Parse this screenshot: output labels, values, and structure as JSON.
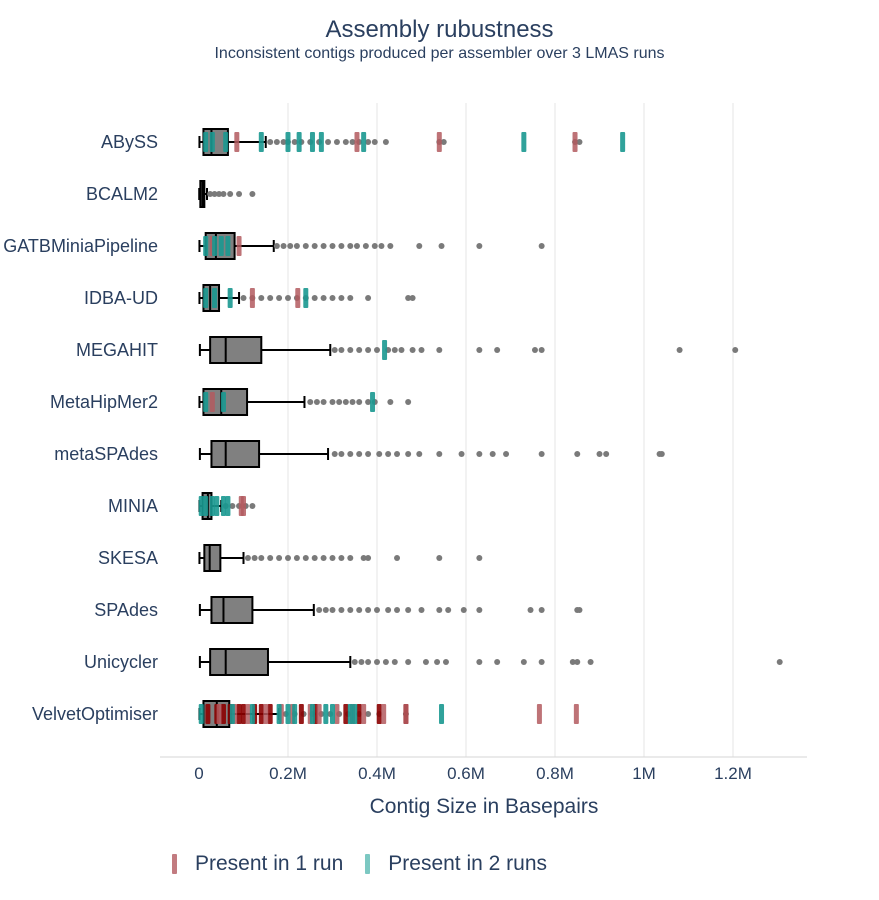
{
  "chart_data": {
    "type": "box",
    "title": "Assembly rubustness",
    "subtitle": "Inconsistent contigs produced per assembler over 3 LMAS runs",
    "xlabel": "Contig Size in Basepairs",
    "ylabel": "",
    "xlim": [
      -30000,
      1370000
    ],
    "xticks": [
      0,
      200000,
      400000,
      600000,
      800000,
      1000000,
      1200000
    ],
    "xtick_labels": [
      "0",
      "0.2M",
      "0.4M",
      "0.6M",
      "0.8M",
      "1M",
      "1.2M"
    ],
    "grid": "vertical",
    "legend_position": "bottom",
    "colors": {
      "box_fill": "#808080",
      "box_line": "#000000",
      "outlier": "#7a7a7a",
      "run1": "#b35a5f",
      "run2": "#1a9890",
      "run3": "#8b0000",
      "grid": "#e5e5e5",
      "text": "#2a3f5f"
    },
    "legend": [
      {
        "name": "Present in 1 run",
        "color": "#c27b80"
      },
      {
        "name": "Present in 2 runs",
        "color": "#7cc8c2"
      }
    ],
    "categories": [
      "ABySS",
      "BCALM2",
      "GATBMiniaPipeline",
      "IDBA-UD",
      "MEGAHIT",
      "MetaHipMer2",
      "metaSPAdes",
      "MINIA",
      "SKESA",
      "SPAdes",
      "Unicycler",
      "VelvetOptimiser"
    ],
    "boxes": [
      {
        "assembler": "ABySS",
        "min": 1000,
        "q1": 10000,
        "median": 28000,
        "q3": 65000,
        "max": 150000,
        "outliers": [
          160000,
          175000,
          190000,
          200000,
          215000,
          230000,
          250000,
          270000,
          290000,
          310000,
          330000,
          345000,
          360000,
          380000,
          395000,
          420000,
          540000,
          550000,
          845000,
          855000
        ],
        "run1": [
          85000,
          355000,
          540000,
          845000
        ],
        "run2": [
          15000,
          30000,
          60000,
          140000,
          200000,
          225000,
          255000,
          275000,
          370000,
          730000,
          952000
        ]
      },
      {
        "assembler": "BCALM2",
        "min": 500,
        "q1": 3000,
        "median": 8000,
        "q3": 12000,
        "max": 18000,
        "outliers": [
          25000,
          35000,
          45000,
          55000,
          70000,
          90000,
          120000
        ],
        "run1": [],
        "run2": []
      },
      {
        "assembler": "GATBMiniaPipeline",
        "min": 1000,
        "q1": 15000,
        "median": 38000,
        "q3": 80000,
        "max": 168000,
        "outliers": [
          175000,
          190000,
          205000,
          220000,
          240000,
          260000,
          280000,
          300000,
          320000,
          340000,
          355000,
          375000,
          395000,
          410000,
          430000,
          495000,
          545000,
          630000,
          770000
        ],
        "run1": [
          30000,
          90000
        ],
        "run2": [
          15000,
          35000,
          50000,
          65000
        ]
      },
      {
        "assembler": "IDBA-UD",
        "min": 1000,
        "q1": 10000,
        "median": 25000,
        "q3": 45000,
        "max": 90000,
        "outliers": [
          100000,
          120000,
          140000,
          160000,
          180000,
          200000,
          220000,
          240000,
          260000,
          280000,
          300000,
          320000,
          340000,
          380000,
          470000,
          480000
        ],
        "run1": [
          120000,
          222000
        ],
        "run2": [
          15000,
          35000,
          70000,
          240000
        ]
      },
      {
        "assembler": "MEGAHIT",
        "min": 2000,
        "q1": 25000,
        "median": 60000,
        "q3": 140000,
        "max": 295000,
        "outliers": [
          305000,
          320000,
          340000,
          360000,
          380000,
          400000,
          425000,
          440000,
          455000,
          480000,
          500000,
          540000,
          630000,
          670000,
          755000,
          770000,
          1080000,
          1205000
        ],
        "run1": [],
        "run2": [
          417000
        ]
      },
      {
        "assembler": "MetaHipMer2",
        "min": 1000,
        "q1": 10000,
        "median": 50000,
        "q3": 108000,
        "max": 237000,
        "outliers": [
          250000,
          265000,
          280000,
          300000,
          315000,
          330000,
          345000,
          360000,
          380000,
          395000,
          430000,
          470000
        ],
        "run1": [
          30000
        ],
        "run2": [
          15000,
          55000,
          390000
        ]
      },
      {
        "assembler": "metaSPAdes",
        "min": 2000,
        "q1": 28000,
        "median": 60000,
        "q3": 135000,
        "max": 290000,
        "outliers": [
          305000,
          320000,
          340000,
          360000,
          380000,
          405000,
          425000,
          445000,
          470000,
          495000,
          540000,
          590000,
          630000,
          660000,
          690000,
          770000,
          850000,
          900000,
          915000,
          1035000,
          1040000
        ],
        "run1": [],
        "run2": []
      },
      {
        "assembler": "MINIA",
        "min": 1000,
        "q1": 8000,
        "median": 20000,
        "q3": 28000,
        "max": 50000,
        "outliers": [
          60000,
          75000,
          90000,
          105000,
          120000
        ],
        "run1": [
          95000,
          100000
        ],
        "run2": [
          5000,
          15000,
          30000,
          40000,
          55000,
          65000
        ]
      },
      {
        "assembler": "SKESA",
        "min": 1000,
        "q1": 12000,
        "median": 24000,
        "q3": 48000,
        "max": 100000,
        "outliers": [
          110000,
          125000,
          140000,
          160000,
          180000,
          200000,
          220000,
          240000,
          260000,
          280000,
          300000,
          320000,
          340000,
          370000,
          380000,
          445000,
          540000,
          630000
        ],
        "run1": [],
        "run2": []
      },
      {
        "assembler": "SPAdes",
        "min": 2000,
        "q1": 28000,
        "median": 55000,
        "q3": 120000,
        "max": 258000,
        "outliers": [
          270000,
          285000,
          300000,
          320000,
          340000,
          360000,
          380000,
          400000,
          425000,
          445000,
          470000,
          500000,
          540000,
          560000,
          595000,
          630000,
          745000,
          770000,
          850000,
          855000
        ],
        "run1": [],
        "run2": []
      },
      {
        "assembler": "Unicycler",
        "min": 2000,
        "q1": 25000,
        "median": 60000,
        "q3": 155000,
        "max": 340000,
        "outliers": [
          350000,
          365000,
          380000,
          400000,
          420000,
          440000,
          470000,
          510000,
          535000,
          555000,
          630000,
          670000,
          730000,
          770000,
          840000,
          850000,
          880000,
          1305000
        ],
        "run1": [],
        "run2": []
      },
      {
        "assembler": "VelvetOptimiser",
        "min": 1000,
        "q1": 10000,
        "median": 40000,
        "q3": 68000,
        "max": 180000,
        "outliers": [
          195000,
          215000,
          235000,
          255000,
          275000,
          295000,
          315000,
          335000,
          360000,
          380000,
          405000,
          465000
        ],
        "run1": [
          45000,
          80000,
          110000,
          150000,
          185000,
          210000,
          250000,
          270000,
          310000,
          345000,
          370000,
          415000,
          465000,
          765000,
          848000
        ],
        "run2": [
          5000,
          75000,
          120000,
          180000,
          200000,
          215000,
          255000,
          285000,
          300000,
          340000,
          350000,
          545000
        ],
        "run3": [
          20000,
          40000,
          55000,
          70000,
          90000,
          100000,
          125000,
          140000,
          160000,
          230000,
          262000,
          330000,
          360000,
          405000,
          465000
        ]
      }
    ]
  }
}
